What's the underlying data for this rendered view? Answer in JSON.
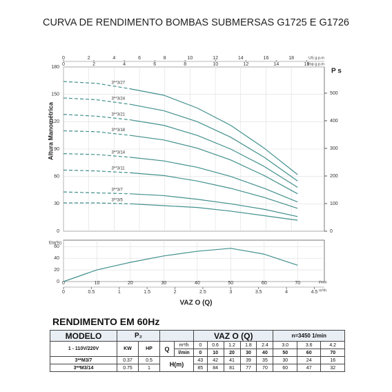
{
  "title": "CURVA DE RENDIMENTO BOMBAS SUBMERSAS G1725 E G1726",
  "chart_data": [
    {
      "type": "line",
      "y_label": "Altura Manométrica",
      "y2_label": "P s",
      "x2_label": "US g.p.m",
      "x3_label": "Imp g.p.m",
      "x": [
        0,
        10,
        20,
        30,
        40,
        50,
        60,
        70
      ],
      "xlim": [
        0,
        78
      ],
      "x2lim": [
        0,
        20.61
      ],
      "x2ticks": [
        0,
        2,
        4,
        6,
        8,
        10,
        12,
        14,
        16,
        18
      ],
      "x3lim": [
        0,
        17.16
      ],
      "x3ticks": [
        0,
        2,
        4,
        6,
        8,
        10,
        12,
        14,
        16
      ],
      "ylim": [
        0,
        180
      ],
      "yticks": [
        0,
        30,
        60,
        90,
        120,
        150,
        180
      ],
      "y2lim": [
        0,
        595
      ],
      "y2ticks": [
        0,
        100,
        200,
        300,
        400,
        500
      ],
      "grid": true,
      "series": [
        {
          "name": "3**3/27",
          "color": "#3f8f8b",
          "values": [
            164,
            162,
            156,
            149,
            135,
            116,
            91,
            62
          ]
        },
        {
          "name": "3**3/24",
          "color": "#3f8f8b",
          "values": [
            146,
            144,
            139,
            132,
            120,
            103,
            81,
            55
          ]
        },
        {
          "name": "3**3/21",
          "color": "#3f8f8b",
          "values": [
            128,
            126,
            122,
            116,
            105,
            90,
            71,
            48
          ]
        },
        {
          "name": "3**3/18",
          "color": "#3f8f8b",
          "values": [
            110,
            109,
            105,
            100,
            91,
            78,
            61,
            41
          ]
        },
        {
          "name": "3**3/14",
          "color": "#3f8f8b",
          "values": [
            85,
            84,
            81,
            77,
            70,
            60,
            47,
            32
          ]
        },
        {
          "name": "3**3/11",
          "color": "#3f8f8b",
          "values": [
            67,
            66,
            64,
            61,
            55,
            47,
            37,
            25
          ]
        },
        {
          "name": "3**3/7",
          "color": "#3f8f8b",
          "values": [
            43,
            42,
            41,
            39,
            35,
            30,
            24,
            16
          ]
        },
        {
          "name": "3**3/5",
          "color": "#3f8f8b",
          "values": [
            31,
            31,
            30,
            28,
            26,
            22,
            17,
            12
          ]
        }
      ]
    },
    {
      "type": "line",
      "y_label": "Eta(%)",
      "x_label": "l/min",
      "x2_label": "m³/h",
      "footer": "VAZ O (Q)",
      "x": [
        0,
        10,
        20,
        30,
        40,
        50,
        60,
        70
      ],
      "values": [
        0,
        20,
        33,
        44,
        52,
        57,
        47,
        28
      ],
      "color": "#3f8f8b",
      "xlim": [
        0,
        78
      ],
      "xticks": [
        0,
        10,
        20,
        30,
        40,
        50,
        60,
        70
      ],
      "x2lim": [
        0,
        4.68
      ],
      "x2ticks": [
        0,
        0.5,
        1,
        1.5,
        2,
        2.5,
        3,
        3.5,
        4,
        4.5
      ],
      "ylim": [
        0,
        71
      ],
      "yticks": [
        0,
        20,
        40,
        60
      ],
      "grid": true
    }
  ],
  "table": {
    "title": "RENDIMENTO EM 60Hz",
    "model": "MODELO",
    "power": "P₂",
    "flow": "VAZ O (Q)",
    "speed": "n=3450 1/min",
    "voltage": "1 - 110V/220V",
    "kw": "KW",
    "hp": "HP",
    "q": "Q",
    "q_m3h": "m³/h",
    "q_lmin": "l/min",
    "head": "H(m)",
    "flow_m3h": [
      "0",
      "0.6",
      "1.2",
      "1.8",
      "2.4",
      "3.0",
      "3.6",
      "4.2"
    ],
    "flow_lmin": [
      0,
      10,
      20,
      30,
      40,
      50,
      60,
      70
    ],
    "rows": [
      {
        "model": "3**M3/7",
        "kw": 0.37,
        "hp": 0.5,
        "head": [
          43,
          42,
          41,
          39,
          35,
          30,
          24,
          16
        ]
      },
      {
        "model": "3**M3/14",
        "kw": 0.75,
        "hp": 1,
        "head": [
          85,
          84,
          81,
          77,
          70,
          60,
          47,
          32
        ]
      }
    ]
  }
}
